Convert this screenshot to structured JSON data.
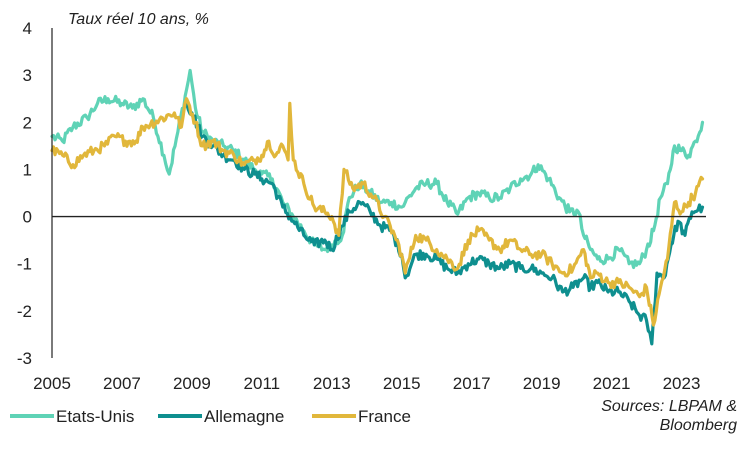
{
  "chart_data": {
    "type": "line",
    "title": "Taux réel 10 ans, %",
    "xlabel": "",
    "ylabel": "",
    "xlim": [
      2005,
      2023.7
    ],
    "ylim": [
      -3,
      4
    ],
    "x_ticks": [
      "2005",
      "2007",
      "2009",
      "2011",
      "2013",
      "2015",
      "2017",
      "2019",
      "2021",
      "2023"
    ],
    "x_tick_values": [
      2005,
      2007,
      2009,
      2011,
      2013,
      2015,
      2017,
      2019,
      2021,
      2023
    ],
    "y_ticks": [
      "4",
      "3",
      "2",
      "1",
      "0",
      "-1",
      "-2",
      "-3"
    ],
    "y_tick_values": [
      4,
      3,
      2,
      1,
      0,
      -1,
      -2,
      -3
    ],
    "zero_line": true,
    "grid": false,
    "legend_position": "bottom-left",
    "source": [
      "Sources: LBPAM &",
      "Bloomberg"
    ],
    "colors": {
      "axis": "#222222",
      "Etats-Unis": "#5fd3b6",
      "Allemagne": "#0e8f8f",
      "France": "#e1b73b"
    },
    "series": [
      {
        "name": "Etats-Unis",
        "points": [
          [
            2005.0,
            1.7
          ],
          [
            2005.3,
            1.6
          ],
          [
            2005.6,
            1.9
          ],
          [
            2006.0,
            2.1
          ],
          [
            2006.3,
            2.4
          ],
          [
            2006.6,
            2.5
          ],
          [
            2007.0,
            2.4
          ],
          [
            2007.3,
            2.3
          ],
          [
            2007.6,
            2.5
          ],
          [
            2007.9,
            2.1
          ],
          [
            2008.2,
            1.3
          ],
          [
            2008.35,
            0.9
          ],
          [
            2008.6,
            1.8
          ],
          [
            2008.85,
            2.7
          ],
          [
            2008.95,
            3.1
          ],
          [
            2009.1,
            2.3
          ],
          [
            2009.3,
            1.8
          ],
          [
            2009.6,
            1.6
          ],
          [
            2009.9,
            1.5
          ],
          [
            2010.2,
            1.4
          ],
          [
            2010.5,
            1.2
          ],
          [
            2010.8,
            1.0
          ],
          [
            2011.0,
            0.9
          ],
          [
            2011.3,
            0.8
          ],
          [
            2011.6,
            0.3
          ],
          [
            2011.9,
            0.0
          ],
          [
            2012.2,
            -0.3
          ],
          [
            2012.5,
            -0.6
          ],
          [
            2012.8,
            -0.7
          ],
          [
            2013.0,
            -0.6
          ],
          [
            2013.3,
            -0.4
          ],
          [
            2013.5,
            0.4
          ],
          [
            2013.8,
            0.7
          ],
          [
            2014.1,
            0.5
          ],
          [
            2014.4,
            0.3
          ],
          [
            2014.7,
            0.3
          ],
          [
            2015.0,
            0.2
          ],
          [
            2015.1,
            0.3
          ],
          [
            2015.4,
            0.6
          ],
          [
            2015.7,
            0.7
          ],
          [
            2016.0,
            0.7
          ],
          [
            2016.3,
            0.3
          ],
          [
            2016.6,
            0.05
          ],
          [
            2016.9,
            0.4
          ],
          [
            2017.2,
            0.5
          ],
          [
            2017.5,
            0.4
          ],
          [
            2017.8,
            0.4
          ],
          [
            2018.1,
            0.6
          ],
          [
            2018.4,
            0.8
          ],
          [
            2018.7,
            0.9
          ],
          [
            2018.9,
            1.1
          ],
          [
            2019.2,
            0.8
          ],
          [
            2019.5,
            0.4
          ],
          [
            2019.8,
            0.1
          ],
          [
            2020.05,
            0.1
          ],
          [
            2020.2,
            -0.4
          ],
          [
            2020.4,
            -0.7
          ],
          [
            2020.6,
            -0.9
          ],
          [
            2020.9,
            -0.9
          ],
          [
            2021.2,
            -0.7
          ],
          [
            2021.5,
            -1.0
          ],
          [
            2021.8,
            -1.0
          ],
          [
            2022.0,
            -0.7
          ],
          [
            2022.2,
            -0.3
          ],
          [
            2022.4,
            0.4
          ],
          [
            2022.6,
            0.7
          ],
          [
            2022.8,
            1.5
          ],
          [
            2023.0,
            1.4
          ],
          [
            2023.2,
            1.3
          ],
          [
            2023.4,
            1.6
          ],
          [
            2023.6,
            2.0
          ]
        ]
      },
      {
        "name": "Allemagne",
        "points": [
          [
            2008.85,
            2.4
          ],
          [
            2009.0,
            2.2
          ],
          [
            2009.3,
            1.7
          ],
          [
            2009.6,
            1.5
          ],
          [
            2009.9,
            1.3
          ],
          [
            2010.2,
            1.2
          ],
          [
            2010.5,
            1.0
          ],
          [
            2010.8,
            0.9
          ],
          [
            2011.0,
            0.8
          ],
          [
            2011.3,
            0.7
          ],
          [
            2011.6,
            0.2
          ],
          [
            2011.9,
            -0.1
          ],
          [
            2012.2,
            -0.4
          ],
          [
            2012.5,
            -0.6
          ],
          [
            2012.8,
            -0.5
          ],
          [
            2013.0,
            -0.7
          ],
          [
            2013.3,
            -0.2
          ],
          [
            2013.5,
            0.1
          ],
          [
            2013.8,
            0.3
          ],
          [
            2014.1,
            0.1
          ],
          [
            2014.4,
            -0.2
          ],
          [
            2014.7,
            -0.3
          ],
          [
            2015.0,
            -0.8
          ],
          [
            2015.1,
            -1.3
          ],
          [
            2015.4,
            -0.8
          ],
          [
            2015.7,
            -0.8
          ],
          [
            2016.0,
            -0.9
          ],
          [
            2016.3,
            -1.1
          ],
          [
            2016.6,
            -1.2
          ],
          [
            2016.9,
            -1.0
          ],
          [
            2017.2,
            -0.9
          ],
          [
            2017.5,
            -1.0
          ],
          [
            2017.8,
            -1.1
          ],
          [
            2018.1,
            -1.0
          ],
          [
            2018.4,
            -1.1
          ],
          [
            2018.7,
            -1.1
          ],
          [
            2019.0,
            -1.2
          ],
          [
            2019.3,
            -1.3
          ],
          [
            2019.6,
            -1.6
          ],
          [
            2019.9,
            -1.5
          ],
          [
            2020.2,
            -1.3
          ],
          [
            2020.4,
            -1.5
          ],
          [
            2020.6,
            -1.4
          ],
          [
            2020.9,
            -1.6
          ],
          [
            2021.2,
            -1.6
          ],
          [
            2021.5,
            -1.8
          ],
          [
            2021.8,
            -2.1
          ],
          [
            2022.0,
            -2.2
          ],
          [
            2022.15,
            -2.7
          ],
          [
            2022.3,
            -1.2
          ],
          [
            2022.5,
            -1.3
          ],
          [
            2022.7,
            -0.6
          ],
          [
            2022.9,
            -0.1
          ],
          [
            2023.1,
            -0.4
          ],
          [
            2023.3,
            0.1
          ],
          [
            2023.6,
            0.2
          ]
        ]
      },
      {
        "name": "France",
        "points": [
          [
            2005.0,
            1.4
          ],
          [
            2005.3,
            1.3
          ],
          [
            2005.6,
            1.1
          ],
          [
            2005.9,
            1.3
          ],
          [
            2006.2,
            1.4
          ],
          [
            2006.5,
            1.5
          ],
          [
            2006.8,
            1.7
          ],
          [
            2007.1,
            1.6
          ],
          [
            2007.4,
            1.6
          ],
          [
            2007.6,
            1.9
          ],
          [
            2008.5,
            2.2
          ],
          [
            2008.7,
            1.9
          ],
          [
            2008.85,
            2.5
          ],
          [
            2009.1,
            2.0
          ],
          [
            2009.3,
            1.5
          ],
          [
            2009.6,
            1.6
          ],
          [
            2009.9,
            1.4
          ],
          [
            2010.2,
            1.3
          ],
          [
            2010.5,
            1.1
          ],
          [
            2010.8,
            1.2
          ],
          [
            2011.0,
            1.3
          ],
          [
            2011.2,
            1.6
          ],
          [
            2011.4,
            1.3
          ],
          [
            2011.6,
            1.5
          ],
          [
            2011.75,
            1.2
          ],
          [
            2011.8,
            2.4
          ],
          [
            2011.9,
            1.2
          ],
          [
            2012.2,
            0.7
          ],
          [
            2012.5,
            0.2
          ],
          [
            2012.8,
            0.1
          ],
          [
            2013.0,
            0.0
          ],
          [
            2013.2,
            -0.4
          ],
          [
            2013.35,
            1.0
          ],
          [
            2013.6,
            0.6
          ],
          [
            2013.9,
            0.7
          ],
          [
            2014.2,
            0.4
          ],
          [
            2014.5,
            0.0
          ],
          [
            2014.8,
            -0.4
          ],
          [
            2015.0,
            -0.8
          ],
          [
            2015.1,
            -1.2
          ],
          [
            2015.4,
            -0.4
          ],
          [
            2015.7,
            -0.5
          ],
          [
            2016.0,
            -0.7
          ],
          [
            2016.3,
            -0.9
          ],
          [
            2016.6,
            -1.1
          ],
          [
            2016.9,
            -0.5
          ],
          [
            2017.2,
            -0.3
          ],
          [
            2017.5,
            -0.5
          ],
          [
            2017.8,
            -0.7
          ],
          [
            2018.1,
            -0.5
          ],
          [
            2018.4,
            -0.7
          ],
          [
            2018.7,
            -0.8
          ],
          [
            2019.0,
            -0.8
          ],
          [
            2019.3,
            -1.0
          ],
          [
            2019.6,
            -1.2
          ],
          [
            2019.9,
            -1.1
          ],
          [
            2020.2,
            -0.7
          ],
          [
            2020.4,
            -1.3
          ],
          [
            2020.6,
            -1.2
          ],
          [
            2020.9,
            -1.4
          ],
          [
            2021.2,
            -1.4
          ],
          [
            2021.5,
            -1.5
          ],
          [
            2021.8,
            -1.7
          ],
          [
            2022.0,
            -1.5
          ],
          [
            2022.2,
            -2.3
          ],
          [
            2022.4,
            -1.5
          ],
          [
            2022.6,
            -0.9
          ],
          [
            2022.8,
            0.3
          ],
          [
            2023.0,
            0.1
          ],
          [
            2023.2,
            0.3
          ],
          [
            2023.4,
            0.5
          ],
          [
            2023.6,
            0.8
          ]
        ]
      }
    ]
  }
}
